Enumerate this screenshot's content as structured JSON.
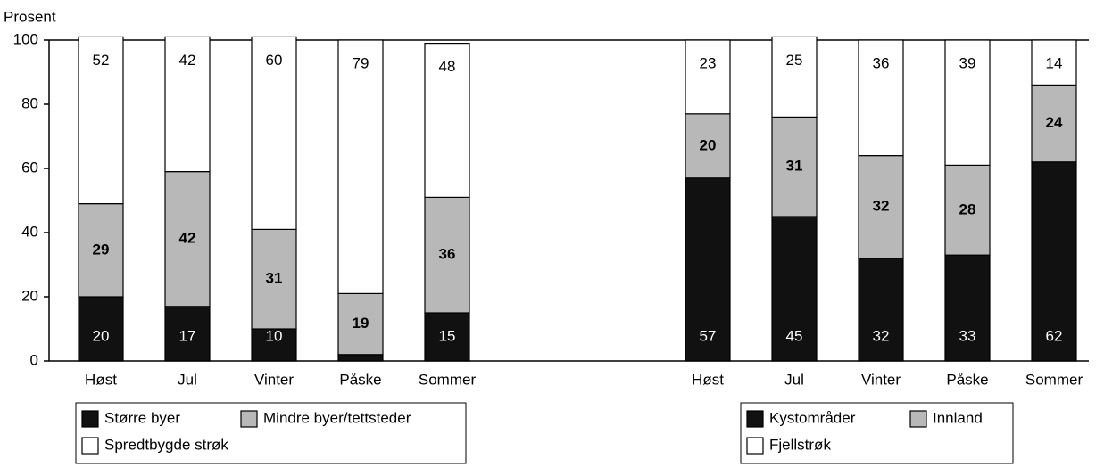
{
  "chart_data": [
    {
      "type": "stacked_bar",
      "y_label": "Prosent",
      "categories": [
        "Høst",
        "Jul",
        "Vinter",
        "Påske",
        "Sommer"
      ],
      "series": [
        {
          "name": "Større byer",
          "color": "#111111",
          "values": [
            20,
            17,
            10,
            2,
            15
          ]
        },
        {
          "name": "Mindre byer/tettsteder",
          "color": "#b8b8b8",
          "values": [
            29,
            42,
            31,
            19,
            36
          ]
        },
        {
          "name": "Spredtbygde strøk",
          "color": "#ffffff",
          "values": [
            52,
            42,
            60,
            79,
            48
          ]
        }
      ],
      "ylim": [
        0,
        100
      ],
      "yticks": [
        0,
        20,
        40,
        60,
        80,
        100
      ]
    },
    {
      "type": "stacked_bar",
      "categories": [
        "Høst",
        "Jul",
        "Vinter",
        "Påske",
        "Sommer"
      ],
      "series": [
        {
          "name": "Kystområder",
          "color": "#111111",
          "values": [
            57,
            45,
            32,
            33,
            62
          ]
        },
        {
          "name": "Innland",
          "color": "#b8b8b8",
          "values": [
            20,
            31,
            32,
            28,
            24
          ]
        },
        {
          "name": "Fjellstrøk",
          "color": "#ffffff",
          "values": [
            23,
            25,
            36,
            39,
            14
          ]
        }
      ],
      "ylim": [
        0,
        100
      ]
    }
  ]
}
